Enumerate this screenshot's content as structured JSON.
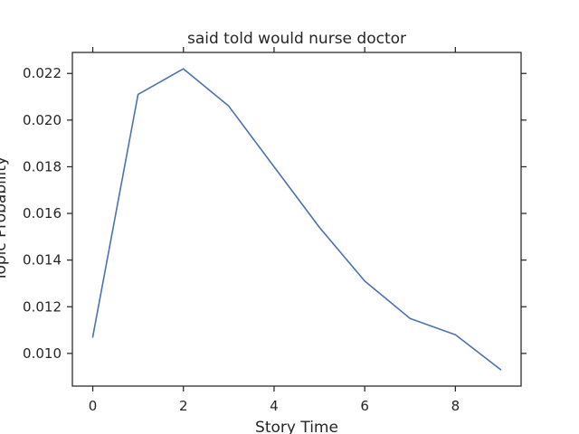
{
  "chart_data": {
    "type": "line",
    "title": "said told would nurse doctor",
    "xlabel": "Story Time",
    "ylabel": "Topic Probability",
    "xlim": [
      -0.45,
      9.45
    ],
    "ylim": [
      0.0086,
      0.0229
    ],
    "x_ticks": [
      0,
      2,
      4,
      6,
      8
    ],
    "x_tick_labels": [
      "0",
      "2",
      "4",
      "6",
      "8"
    ],
    "y_ticks": [
      0.01,
      0.012,
      0.014,
      0.016,
      0.018,
      0.02,
      0.022
    ],
    "y_tick_labels": [
      "0.010",
      "0.012",
      "0.014",
      "0.016",
      "0.018",
      "0.020",
      "0.022"
    ],
    "grid": false,
    "series": [
      {
        "x": [
          0,
          1,
          2,
          3,
          4,
          5,
          6,
          7,
          8,
          9
        ],
        "y": [
          0.0107,
          0.0211,
          0.0222,
          0.0206,
          0.018,
          0.0154,
          0.0131,
          0.0115,
          0.0108,
          0.0093
        ],
        "color": "#4c72b0"
      }
    ]
  }
}
